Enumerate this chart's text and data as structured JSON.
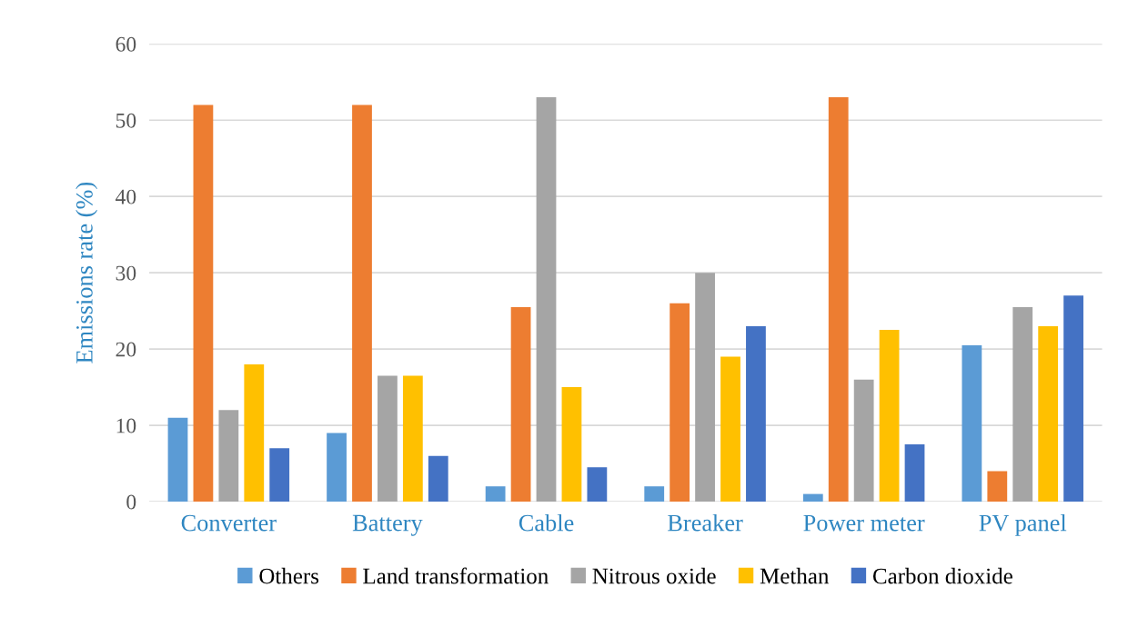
{
  "chart_data": {
    "type": "bar",
    "ylabel": "Emissions rate (%)",
    "categories": [
      "Converter",
      "Battery",
      "Cable",
      "Breaker",
      "Power meter",
      "PV panel"
    ],
    "series": [
      {
        "name": "Others",
        "color": "#5b9bd5",
        "values": [
          11,
          9,
          2,
          2,
          1,
          20.5
        ]
      },
      {
        "name": "Land transformation",
        "color": "#ed7d31",
        "values": [
          52,
          52,
          25.5,
          26,
          53,
          4
        ]
      },
      {
        "name": "Nitrous oxide",
        "color": "#a5a5a5",
        "values": [
          12,
          16.5,
          53,
          30,
          16,
          25.5
        ]
      },
      {
        "name": "Methan",
        "color": "#ffc000",
        "values": [
          18,
          16.5,
          15,
          19,
          22.5,
          23
        ]
      },
      {
        "name": "Carbon dioxide",
        "color": "#4472c4",
        "values": [
          7,
          6,
          4.5,
          23,
          7.5,
          27
        ]
      }
    ],
    "ylim": [
      0,
      60
    ],
    "yticks": [
      0,
      10,
      20,
      30,
      40,
      50,
      60
    ],
    "grid": "y",
    "legend": "bottom"
  }
}
